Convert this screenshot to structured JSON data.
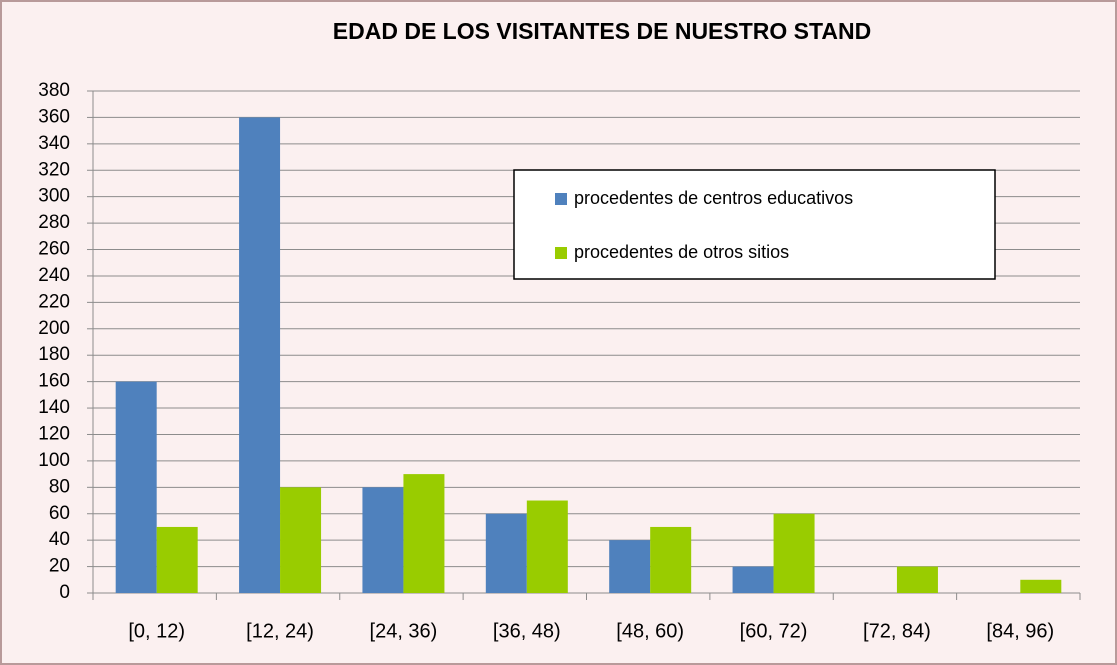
{
  "chart_data": {
    "type": "bar",
    "title": "EDAD DE LOS VISITANTES DE NUESTRO STAND",
    "categories": [
      "[0, 12)",
      "[12, 24)",
      "[24, 36)",
      "[36, 48)",
      "[48, 60)",
      "[60, 72)",
      "[72, 84)",
      "[84, 96)"
    ],
    "series": [
      {
        "name": "procedentes de centros educativos",
        "color": "#4f81bd",
        "values": [
          160,
          360,
          80,
          60,
          40,
          20,
          0,
          0
        ]
      },
      {
        "name": "procedentes de otros sitios",
        "color": "#99cc00",
        "values": [
          50,
          80,
          90,
          70,
          50,
          60,
          20,
          10
        ]
      }
    ],
    "ylim": [
      0,
      380
    ],
    "yticks": [
      0,
      20,
      40,
      60,
      80,
      100,
      120,
      140,
      160,
      180,
      200,
      220,
      240,
      260,
      280,
      300,
      320,
      340,
      360,
      380
    ],
    "grid": true,
    "legend": "upper right"
  }
}
